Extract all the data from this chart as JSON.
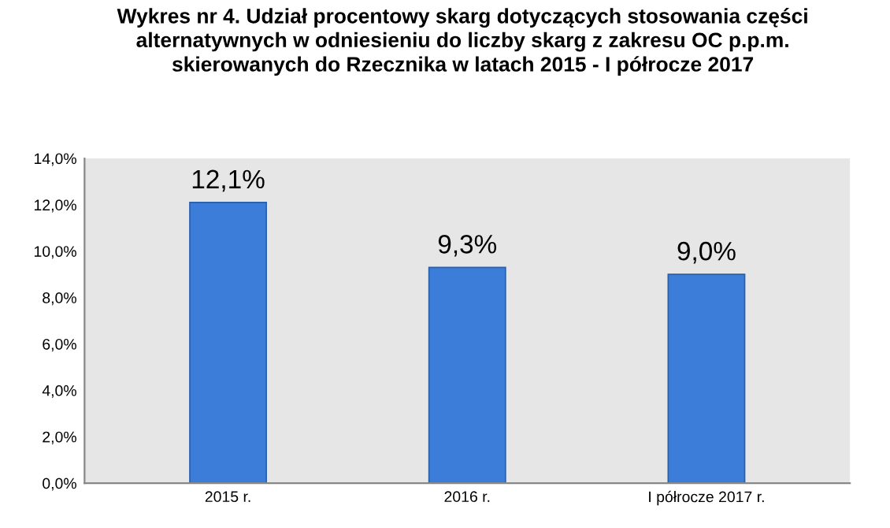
{
  "chart_data": {
    "type": "bar",
    "title": "Wykres nr 4. Udział procentowy skarg dotyczących stosowania części\nalternatywnych w odniesieniu do liczby skarg z zakresu OC p.p.m.\nskierowanych do Rzecznika w latach 2015 - I półrocze 2017",
    "categories": [
      "2015 r.",
      "2016 r.",
      "I półrocze 2017 r."
    ],
    "values": [
      12.1,
      9.3,
      9.0
    ],
    "value_labels": [
      "12,1%",
      "9,3%",
      "9,0%"
    ],
    "color": "#3b7dd8",
    "ylim": [
      0,
      14
    ],
    "yticks": [
      {
        "value": 0,
        "label": "0,0%"
      },
      {
        "value": 2,
        "label": "2,0%"
      },
      {
        "value": 4,
        "label": "4,0%"
      },
      {
        "value": 6,
        "label": "6,0%"
      },
      {
        "value": 8,
        "label": "8,0%"
      },
      {
        "value": 10,
        "label": "10,0%"
      },
      {
        "value": 12,
        "label": "12,0%"
      },
      {
        "value": 14,
        "label": "14,0%"
      }
    ],
    "grid": false
  }
}
